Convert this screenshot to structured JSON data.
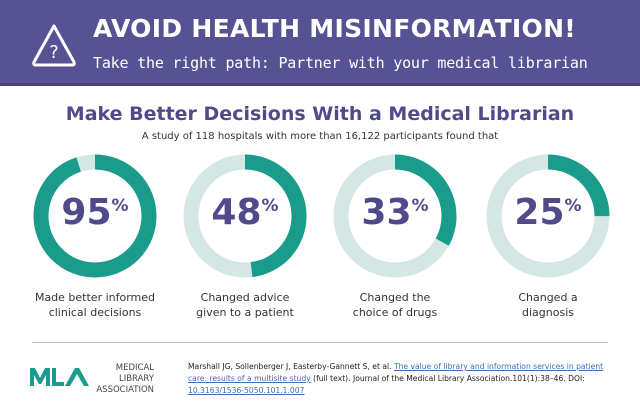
{
  "header": {
    "title": "AVOID HEALTH MISINFORMATION!",
    "subtitle": "Take the right path: Partner with your medical librarian",
    "icon": "warning-question-icon"
  },
  "section": {
    "title": "Make Better Decisions With a Medical Librarian",
    "intro": "A study of 118 hospitals with more than 16,122 participants found that"
  },
  "colors": {
    "header": "#575293",
    "accent": "#1a9b8b",
    "track": "#d5e7e4",
    "text": "#4f4a8a"
  },
  "chart_data": {
    "type": "pie",
    "variant": "donut",
    "categories": [
      "Made better informed clinical decisions",
      "Changed advice given to a patient",
      "Changed the choice of drugs",
      "Changed a diagnosis"
    ],
    "values": [
      95,
      48,
      33,
      25
    ],
    "value_labels": [
      "95",
      "48",
      "33",
      "25"
    ],
    "unit": "%",
    "label_lines": [
      [
        "Made better informed",
        "clinical decisions"
      ],
      [
        "Changed advice",
        "given to a patient"
      ],
      [
        "Changed the",
        "choice of drugs"
      ],
      [
        "Changed a",
        "diagnosis"
      ]
    ]
  },
  "footer": {
    "org_line1": "Medical Library",
    "org_line2": "Association",
    "logo": "MLA",
    "authors": "Marshall JG, Sollenberger J, Easterby-Gannett S, et al. ",
    "link_title": "The value of library and information services in patient care: results of a multisite study",
    "fulltext": " (full text). Journal of the Medical Library Association.101(1):38–46. DOI: ",
    "doi": "10.3163/1536-5050.101.1.007"
  }
}
